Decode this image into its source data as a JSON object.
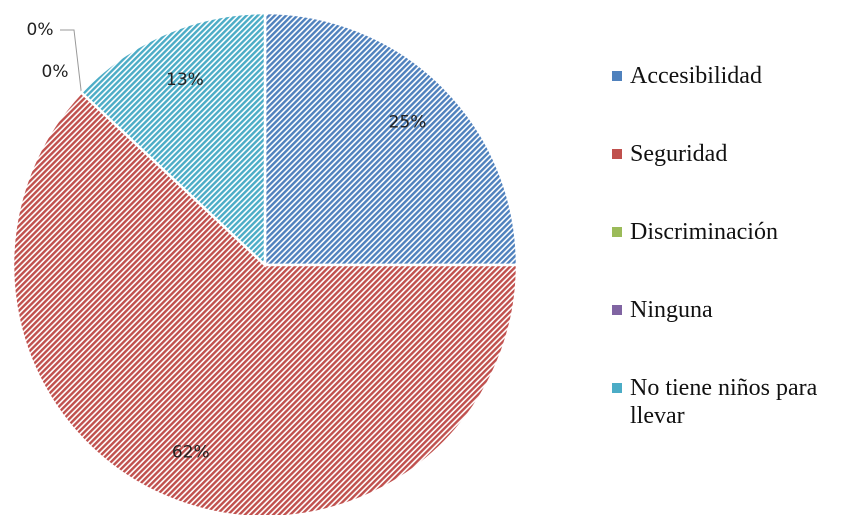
{
  "chart_data": {
    "type": "pie",
    "categories": [
      "Accesibilidad",
      "Seguridad",
      "Discriminación",
      "Ninguna",
      "No tiene niños para llevar"
    ],
    "values": [
      25,
      62,
      0,
      0,
      13
    ],
    "value_labels": [
      "25%",
      "62%",
      "0%",
      "0%",
      "13%"
    ],
    "colors": [
      "#4f81bd",
      "#c0504d",
      "#9bbb59",
      "#8064a2",
      "#4bacc6"
    ],
    "legend": "right"
  }
}
